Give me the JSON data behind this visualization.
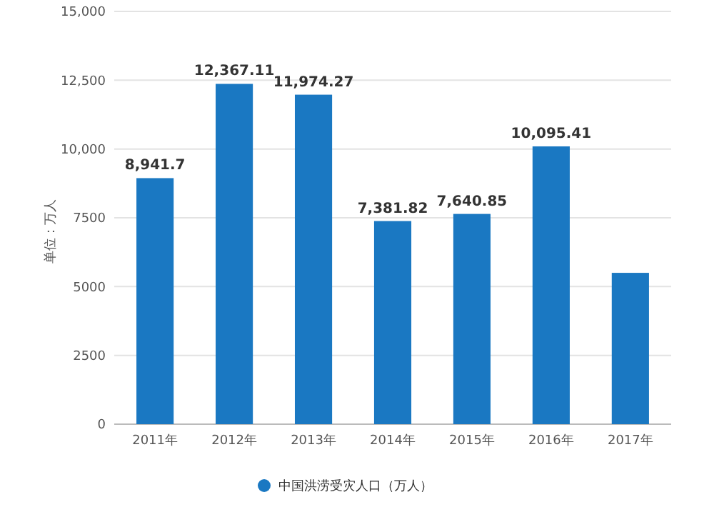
{
  "chart_data": {
    "type": "bar",
    "ylabel": "单位：万人",
    "categories": [
      "2011年",
      "2012年",
      "2013年",
      "2014年",
      "2015年",
      "2016年",
      "2017年"
    ],
    "series": [
      {
        "name": "中国洪涝受灾人口（万人）",
        "color": "#1a78c2",
        "values": [
          8941.7,
          12367.11,
          11974.27,
          7381.82,
          7640.85,
          10095.41,
          5500
        ],
        "value_labels": [
          "8,941.7",
          "12,367.11",
          "11,974.27",
          "7,381.82",
          "7,640.85",
          "10,095.41",
          null
        ]
      }
    ],
    "ylim": [
      0,
      15000
    ],
    "yticks": [
      {
        "value": 0,
        "label": "0"
      },
      {
        "value": 2500,
        "label": "2500"
      },
      {
        "value": 5000,
        "label": "5000"
      },
      {
        "value": 7500,
        "label": "7500"
      },
      {
        "value": 10000,
        "label": "10,000"
      },
      {
        "value": 12500,
        "label": "12,500"
      },
      {
        "value": 15000,
        "label": "15,000"
      }
    ],
    "grid": "y",
    "legend": "bottom"
  }
}
